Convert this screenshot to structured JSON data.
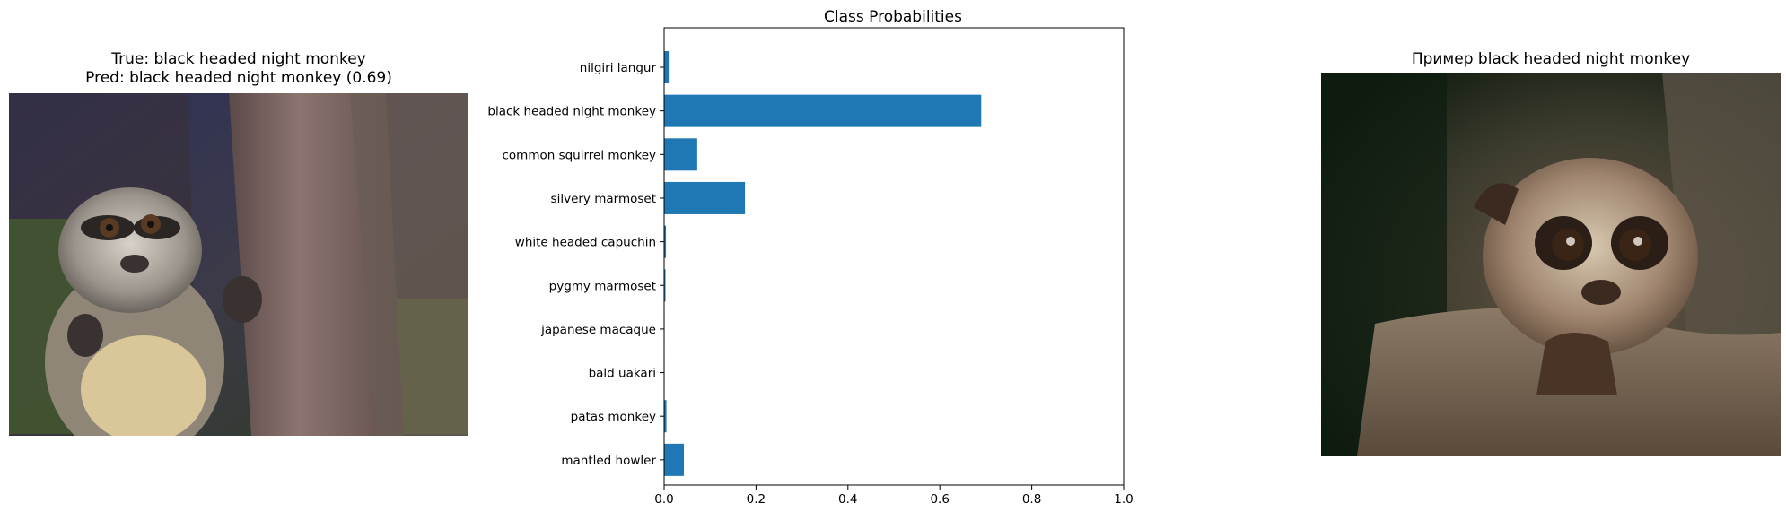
{
  "left_panel": {
    "true_line": "True: black headed night monkey",
    "pred_line": "Pred: black headed night monkey (0.69)"
  },
  "right_panel": {
    "title": "Пример black headed night monkey"
  },
  "colors": {
    "bar": "#1f77b4",
    "axis": "#000000"
  },
  "chart_data": {
    "type": "bar",
    "orientation": "horizontal",
    "title": "Class Probabilities",
    "xlabel": "",
    "ylabel": "",
    "categories": [
      "nilgiri langur",
      "black headed night monkey",
      "common squirrel monkey",
      "silvery marmoset",
      "white headed capuchin",
      "pygmy marmoset",
      "japanese macaque",
      "bald uakari",
      "patas monkey",
      "mantled howler"
    ],
    "values": [
      0.01,
      0.69,
      0.072,
      0.176,
      0.004,
      0.003,
      0.001,
      0.001,
      0.005,
      0.043
    ],
    "xlim": [
      0,
      1.0
    ],
    "xticks": [
      "0.0",
      "0.2",
      "0.4",
      "0.6",
      "0.8",
      "1.0"
    ],
    "grid": false
  }
}
